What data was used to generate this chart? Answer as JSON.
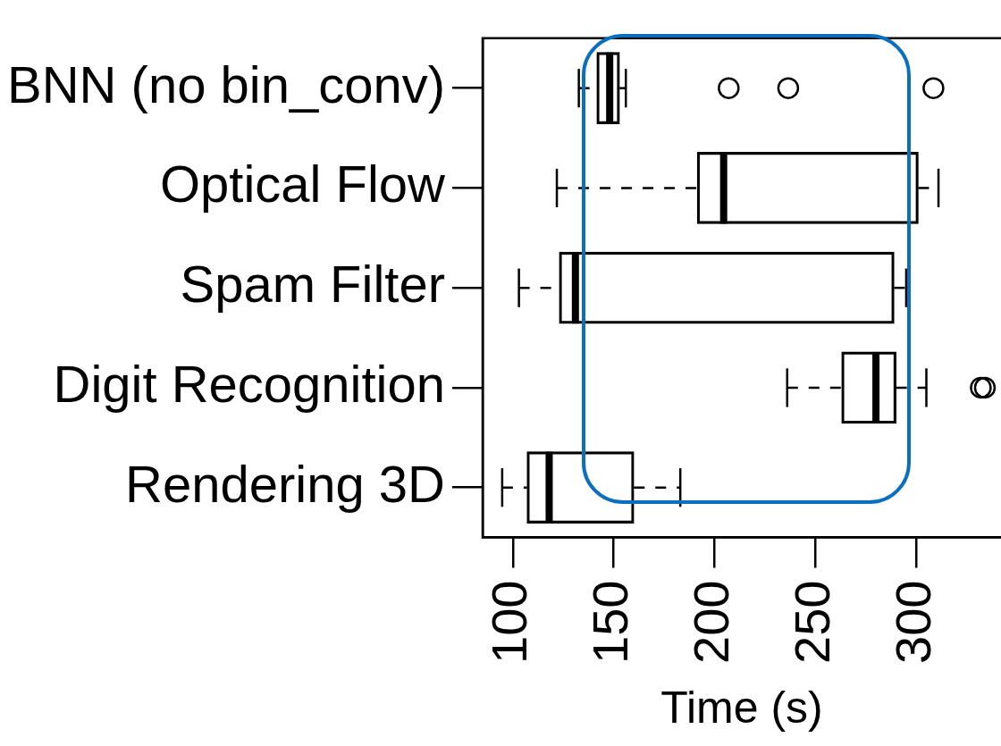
{
  "chart_data": {
    "type": "box",
    "orientation": "horizontal",
    "xlabel": "Time (s)",
    "categories": [
      "BNN (no bin_conv)",
      "Optical Flow",
      "Spam Filter",
      "Digit Recognition",
      "Rendering 3D"
    ],
    "xlim": [
      85,
      342
    ],
    "xticks": [
      100,
      150,
      200,
      250,
      300
    ],
    "grid": false,
    "legend": false,
    "series": [
      {
        "color": "#000000",
        "boxes": [
          {
            "low": 132.7,
            "q1": 141.6,
            "median": 148,
            "q3": 152.9,
            "high": 156,
            "outliers": [
              207,
              236.5,
              308.5
            ]
          },
          {
            "low": 121.8,
            "q1": 191.4,
            "median": 204.5,
            "q3": 301,
            "high": 311
          },
          {
            "low": 103,
            "q1": 123,
            "median": 131,
            "q3": 289,
            "high": 295
          },
          {
            "low": 236,
            "q1": 263,
            "median": 280,
            "q3": 290,
            "high": 305,
            "outliers": [
              332,
              334
            ]
          },
          {
            "low": 94.7,
            "q1": 107,
            "median": 118,
            "q3": 160,
            "high": 183
          }
        ]
      }
    ]
  }
}
